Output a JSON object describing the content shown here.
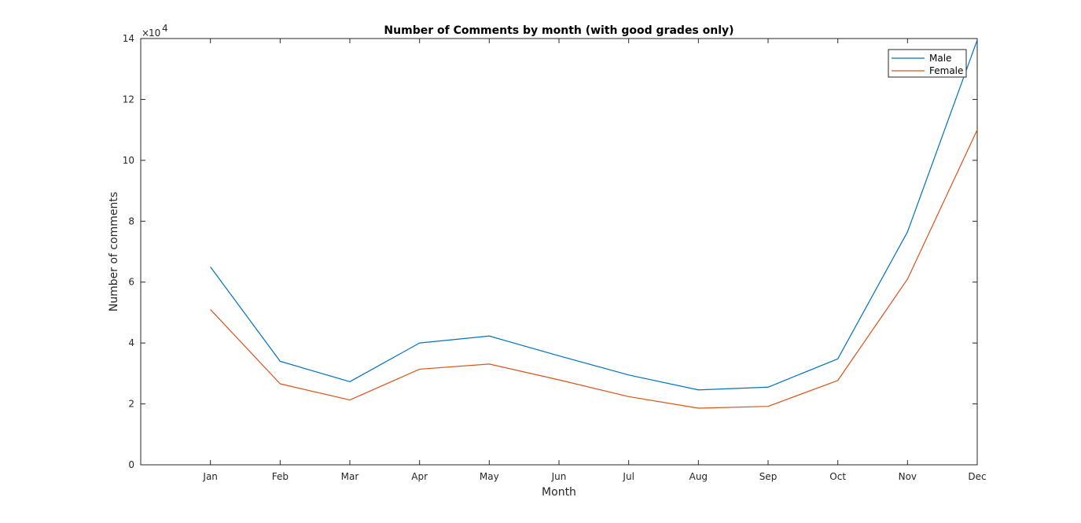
{
  "chart_data": {
    "type": "line",
    "title": "Number of Comments by month (with good grades only)",
    "xlabel": "Month",
    "ylabel": "Number of comments",
    "categories": [
      "Jan",
      "Feb",
      "Mar",
      "Apr",
      "May",
      "Jun",
      "Jul",
      "Aug",
      "Sep",
      "Oct",
      "Nov",
      "Dec"
    ],
    "x_range": [
      0,
      12
    ],
    "ylim": [
      0,
      140000
    ],
    "yticks": [
      0,
      20000,
      40000,
      60000,
      80000,
      100000,
      120000,
      140000
    ],
    "ytick_labels": [
      "0",
      "2",
      "4",
      "6",
      "8",
      "10",
      "12",
      "14"
    ],
    "y_multiplier": {
      "base": "10",
      "exponent": "4",
      "prefix": "×"
    },
    "grid": false,
    "legend_position": "top-right",
    "series": [
      {
        "name": "Male",
        "color": "#0072BD",
        "values": [
          65000,
          34000,
          27300,
          40000,
          42300,
          35800,
          29500,
          24600,
          25500,
          34800,
          76500,
          139500
        ]
      },
      {
        "name": "Female",
        "color": "#D95319",
        "values": [
          51000,
          26600,
          21300,
          31400,
          33100,
          27900,
          22400,
          18600,
          19200,
          27700,
          61000,
          110000
        ]
      }
    ]
  }
}
